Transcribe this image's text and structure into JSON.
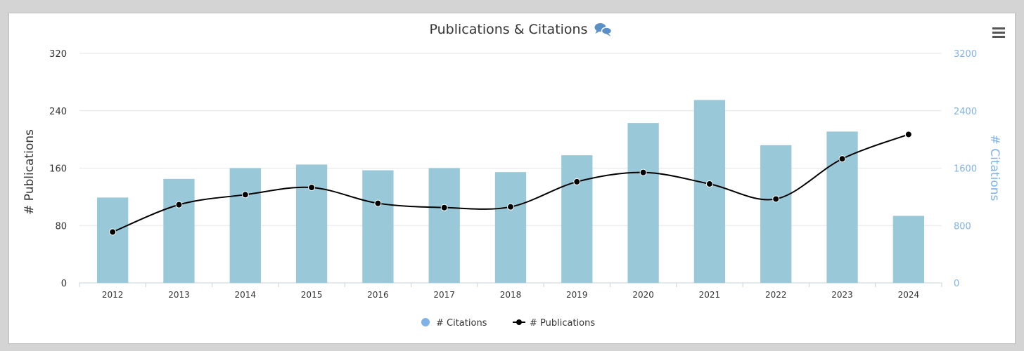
{
  "chart_data": {
    "type": "bar+line",
    "title": "Publications & Citations",
    "title_icon": "speech-bubbles-icon",
    "categories": [
      "2012",
      "2013",
      "2014",
      "2015",
      "2016",
      "2017",
      "2018",
      "2019",
      "2020",
      "2021",
      "2022",
      "2023",
      "2024"
    ],
    "series": [
      {
        "name": "# Citations",
        "type": "bar",
        "axis": "right",
        "color": "#99c9d8",
        "values": [
          1190,
          1450,
          1600,
          1650,
          1570,
          1600,
          1545,
          1780,
          2230,
          2550,
          1920,
          2110,
          935
        ]
      },
      {
        "name": "# Publications",
        "type": "spline",
        "axis": "left",
        "color": "#000000",
        "values": [
          71,
          109,
          123,
          133,
          111,
          105,
          106,
          141,
          154,
          138,
          117,
          173,
          207
        ]
      }
    ],
    "y_left": {
      "label": "# Publications",
      "min": 0,
      "max": 320,
      "ticks": [
        "0",
        "80",
        "160",
        "240",
        "320"
      ]
    },
    "y_right": {
      "label": "# Citations",
      "min": 0,
      "max": 3200,
      "ticks": [
        "0",
        "800",
        "1600",
        "2400",
        "3200"
      ],
      "color": "#7fb3e8"
    },
    "legend_placement": "bottom-center",
    "legend_citations_marker_color": "#7fb3e8",
    "grid": true
  },
  "colors": {
    "grid": "#e6e6e6",
    "axis_text": "#333333",
    "title_icon": "#5b8fc7"
  },
  "menu_icon": "hamburger-menu-icon"
}
